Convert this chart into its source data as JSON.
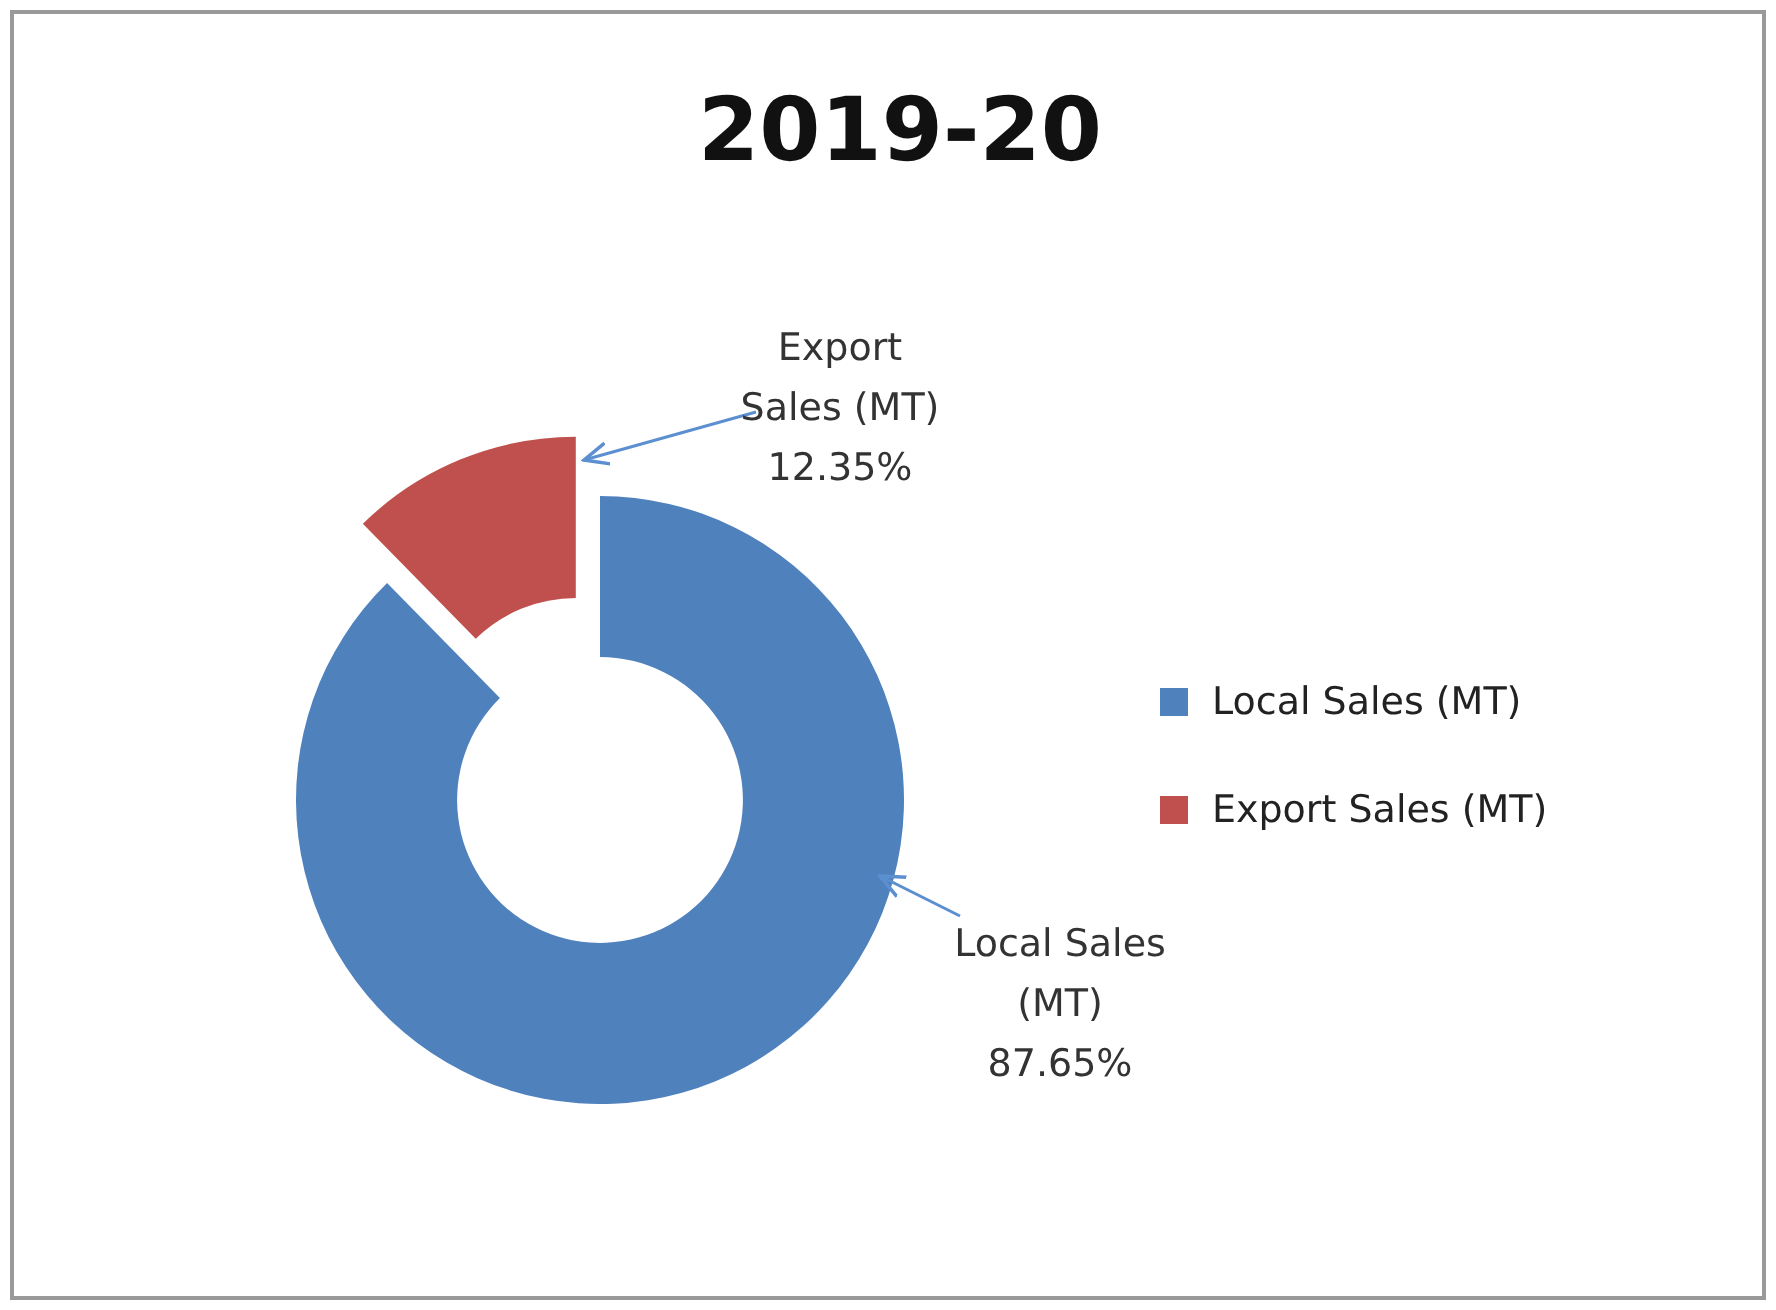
{
  "chart_data": {
    "type": "donut",
    "title": "2019-20",
    "categories": [
      "Local Sales (MT)",
      "Export Sales (MT)"
    ],
    "values": [
      87.65,
      12.35
    ],
    "colors": [
      "#4f81bd",
      "#c0504d"
    ],
    "value_labels": [
      "87.65%",
      "12.35%"
    ],
    "legend": "right"
  }
}
